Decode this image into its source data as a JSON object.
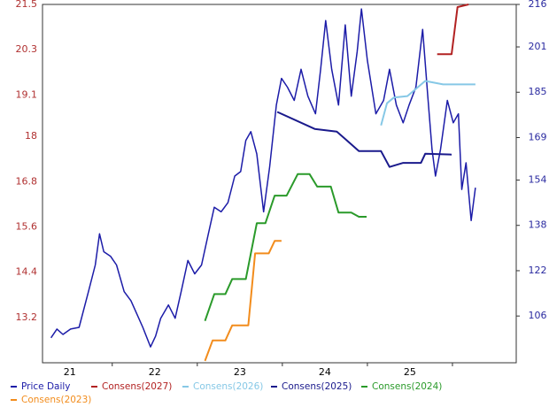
{
  "chart_data": {
    "type": "line",
    "xlim": [
      21.18,
      26.75
    ],
    "xticks": [
      {
        "value": 21.5,
        "label": "21"
      },
      {
        "value": 22.5,
        "label": "22"
      },
      {
        "value": 23.5,
        "label": "23"
      },
      {
        "value": 24.5,
        "label": "24"
      },
      {
        "value": 25.5,
        "label": "25"
      }
    ],
    "xgrid": [
      22,
      23,
      24,
      25,
      26
    ],
    "ylim": [
      12.0,
      21.5
    ],
    "yticks": [
      13.2,
      14.4,
      15.6,
      16.8,
      18.0,
      19.1,
      20.3,
      21.5
    ],
    "y2lim": [
      89.5,
      216
    ],
    "y2ticks": [
      106,
      122,
      138,
      154,
      169,
      185,
      201,
      216
    ],
    "grid": true,
    "left_axis_color": "#b03030",
    "right_axis_color": "#2a2aa0",
    "series": [
      {
        "name": "Price Daily",
        "color": "#1c1ca8",
        "axis": "y2",
        "x": [
          21.28,
          21.35,
          21.42,
          21.51,
          21.61,
          21.72,
          21.8,
          21.85,
          21.9,
          21.98,
          22.05,
          22.14,
          22.22,
          22.29,
          22.36,
          22.45,
          22.51,
          22.57,
          22.66,
          22.74,
          22.81,
          22.89,
          22.97,
          23.05,
          23.13,
          23.2,
          23.28,
          23.36,
          23.44,
          23.51,
          23.57,
          23.63,
          23.7,
          23.78,
          23.85,
          23.93,
          23.99,
          24.06,
          24.14,
          24.22,
          24.3,
          24.39,
          24.45,
          24.51,
          24.58,
          24.66,
          24.74,
          24.81,
          24.88,
          24.93,
          25.0,
          25.1,
          25.19,
          25.26,
          25.34,
          25.42,
          25.49,
          25.57,
          25.65,
          25.71,
          25.76,
          25.8,
          25.86,
          25.94,
          26.01,
          26.07,
          26.11,
          26.16,
          26.22,
          26.27
        ],
        "values": [
          98.3,
          101.4,
          99.5,
          101.4,
          102.0,
          114.6,
          124.0,
          135.0,
          128.7,
          127.1,
          124.0,
          114.6,
          111.4,
          106.7,
          102.0,
          95.1,
          98.9,
          105.2,
          109.9,
          105.2,
          114.6,
          125.6,
          120.9,
          124.0,
          135.0,
          144.4,
          142.8,
          146.0,
          155.4,
          157.0,
          168.0,
          171.1,
          163.2,
          142.8,
          158.6,
          180.5,
          189.9,
          186.8,
          182.1,
          193.1,
          183.6,
          177.4,
          193.1,
          210.3,
          193.1,
          180.5,
          208.8,
          183.6,
          199.4,
          214.4,
          196.2,
          177.4,
          182.1,
          193.1,
          180.5,
          174.2,
          180.5,
          186.8,
          207.2,
          183.6,
          164.8,
          155.4,
          164.8,
          182.1,
          174.2,
          177.4,
          150.7,
          160.1,
          139.7,
          151.3
        ]
      },
      {
        "name": "Consens(2027)",
        "color": "#b22222",
        "x": [
          25.82,
          25.99,
          26.06,
          26.19
        ],
        "values": [
          20.18,
          20.18,
          21.43,
          21.5
        ]
      },
      {
        "name": "Consens(2026)",
        "color": "#86c8e6",
        "x": [
          25.16,
          25.23,
          25.31,
          25.47,
          25.68,
          25.89,
          26.27
        ],
        "values": [
          18.29,
          18.88,
          19.03,
          19.07,
          19.47,
          19.38,
          19.38
        ]
      },
      {
        "name": "Consens(2025)",
        "color": "#1a1a8c",
        "x": [
          23.94,
          24.38,
          24.64,
          24.76,
          24.9,
          25.16,
          25.26,
          25.42,
          25.63,
          25.68,
          25.99
        ],
        "values": [
          18.65,
          18.2,
          18.13,
          17.89,
          17.61,
          17.61,
          17.19,
          17.3,
          17.3,
          17.54,
          17.52
        ]
      },
      {
        "name": "Consens(2024)",
        "color": "#2a9a2a",
        "x": [
          23.09,
          23.2,
          23.33,
          23.41,
          23.57,
          23.7,
          23.8,
          23.91,
          24.05,
          24.18,
          24.32,
          24.41,
          24.57,
          24.66,
          24.81,
          24.9,
          24.99
        ],
        "values": [
          13.11,
          13.82,
          13.82,
          14.22,
          14.22,
          15.7,
          15.7,
          16.43,
          16.43,
          17.0,
          17.0,
          16.67,
          16.67,
          15.98,
          15.98,
          15.87,
          15.87
        ]
      },
      {
        "name": "Consens(2023)",
        "color": "#f28c1c",
        "x": [
          23.09,
          23.18,
          23.33,
          23.41,
          23.6,
          23.68,
          23.84,
          23.91,
          23.99
        ],
        "values": [
          12.05,
          12.59,
          12.59,
          12.99,
          12.99,
          14.9,
          14.9,
          15.23,
          15.23
        ]
      }
    ]
  }
}
